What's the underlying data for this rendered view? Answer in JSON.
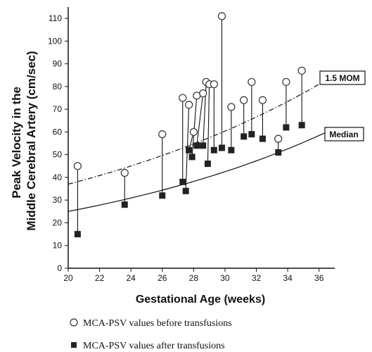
{
  "chart_data": {
    "type": "scatter",
    "xlabel": "Gestational Age (weeks)",
    "ylabel_lines": [
      "Peak Velocity in the",
      "Middle Cerebral Artery (cm/sec)"
    ],
    "xlim": [
      20,
      37
    ],
    "ylim": [
      0,
      115
    ],
    "xticks": [
      20,
      22,
      24,
      26,
      28,
      30,
      32,
      34,
      36
    ],
    "yticks": [
      0,
      10,
      20,
      30,
      40,
      50,
      60,
      70,
      80,
      90,
      100,
      110
    ],
    "grid": false,
    "curves": [
      {
        "label": "1.5 MOM",
        "style": "dash-dot",
        "x": [
          20,
          36.5
        ],
        "y": [
          37,
          83
        ]
      },
      {
        "label": "Median",
        "style": "solid",
        "x": [
          20,
          36.5
        ],
        "y": [
          25,
          60
        ]
      }
    ],
    "series": [
      {
        "name": "MCA-PSV values before transfusions",
        "marker": "open-circle",
        "points": [
          [
            20.6,
            45
          ],
          [
            23.6,
            42
          ],
          [
            26.0,
            59
          ],
          [
            27.3,
            75
          ],
          [
            27.7,
            72
          ],
          [
            28.0,
            60
          ],
          [
            28.2,
            76
          ],
          [
            28.6,
            77
          ],
          [
            28.8,
            82
          ],
          [
            29.0,
            81
          ],
          [
            29.3,
            81
          ],
          [
            29.8,
            111
          ],
          [
            30.4,
            71
          ],
          [
            31.2,
            74
          ],
          [
            31.7,
            82
          ],
          [
            32.4,
            74
          ],
          [
            33.4,
            57
          ],
          [
            33.9,
            82
          ],
          [
            34.9,
            87
          ]
        ]
      },
      {
        "name": "MCA-PSV values after transfusions",
        "marker": "filled-square",
        "points": [
          [
            20.6,
            15
          ],
          [
            23.6,
            28
          ],
          [
            26.0,
            32
          ],
          [
            27.3,
            38
          ],
          [
            27.5,
            34
          ],
          [
            27.7,
            52
          ],
          [
            27.9,
            49
          ],
          [
            28.2,
            54
          ],
          [
            28.6,
            54
          ],
          [
            28.9,
            46
          ],
          [
            29.3,
            52
          ],
          [
            29.8,
            53
          ],
          [
            30.4,
            52
          ],
          [
            31.2,
            58
          ],
          [
            31.7,
            59
          ],
          [
            32.4,
            57
          ],
          [
            33.4,
            51
          ],
          [
            33.9,
            62
          ],
          [
            34.9,
            63
          ]
        ]
      }
    ],
    "legend": {
      "placement": "bottom-left",
      "entries": [
        "MCA-PSV values before transfusions",
        "MCA-PSV values after transfusions"
      ]
    }
  }
}
